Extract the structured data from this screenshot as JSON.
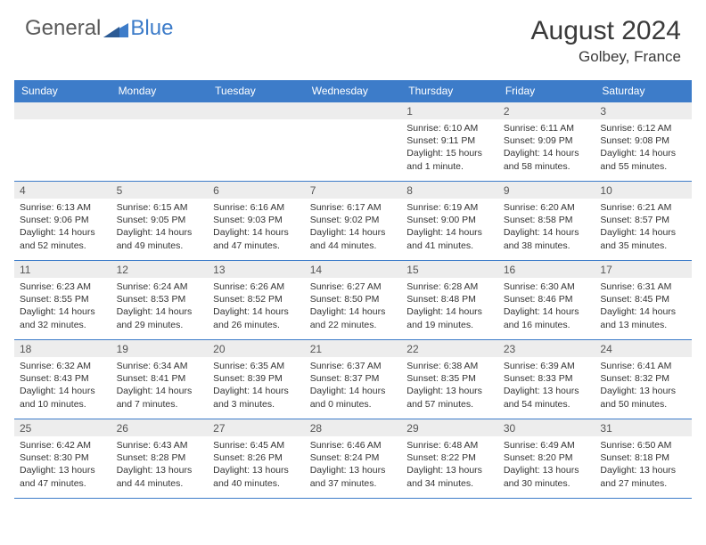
{
  "logo": {
    "general": "General",
    "blue": "Blue"
  },
  "title": "August 2024",
  "location": "Golbey, France",
  "colors": {
    "header_bg": "#3d7cc9",
    "header_text": "#ffffff",
    "daynum_bg": "#ededed",
    "text": "#333333",
    "border": "#3d7cc9"
  },
  "day_headers": [
    "Sunday",
    "Monday",
    "Tuesday",
    "Wednesday",
    "Thursday",
    "Friday",
    "Saturday"
  ],
  "weeks": [
    [
      {
        "n": "",
        "sr": "",
        "ss": "",
        "dl": ""
      },
      {
        "n": "",
        "sr": "",
        "ss": "",
        "dl": ""
      },
      {
        "n": "",
        "sr": "",
        "ss": "",
        "dl": ""
      },
      {
        "n": "",
        "sr": "",
        "ss": "",
        "dl": ""
      },
      {
        "n": "1",
        "sr": "Sunrise: 6:10 AM",
        "ss": "Sunset: 9:11 PM",
        "dl": "Daylight: 15 hours and 1 minute."
      },
      {
        "n": "2",
        "sr": "Sunrise: 6:11 AM",
        "ss": "Sunset: 9:09 PM",
        "dl": "Daylight: 14 hours and 58 minutes."
      },
      {
        "n": "3",
        "sr": "Sunrise: 6:12 AM",
        "ss": "Sunset: 9:08 PM",
        "dl": "Daylight: 14 hours and 55 minutes."
      }
    ],
    [
      {
        "n": "4",
        "sr": "Sunrise: 6:13 AM",
        "ss": "Sunset: 9:06 PM",
        "dl": "Daylight: 14 hours and 52 minutes."
      },
      {
        "n": "5",
        "sr": "Sunrise: 6:15 AM",
        "ss": "Sunset: 9:05 PM",
        "dl": "Daylight: 14 hours and 49 minutes."
      },
      {
        "n": "6",
        "sr": "Sunrise: 6:16 AM",
        "ss": "Sunset: 9:03 PM",
        "dl": "Daylight: 14 hours and 47 minutes."
      },
      {
        "n": "7",
        "sr": "Sunrise: 6:17 AM",
        "ss": "Sunset: 9:02 PM",
        "dl": "Daylight: 14 hours and 44 minutes."
      },
      {
        "n": "8",
        "sr": "Sunrise: 6:19 AM",
        "ss": "Sunset: 9:00 PM",
        "dl": "Daylight: 14 hours and 41 minutes."
      },
      {
        "n": "9",
        "sr": "Sunrise: 6:20 AM",
        "ss": "Sunset: 8:58 PM",
        "dl": "Daylight: 14 hours and 38 minutes."
      },
      {
        "n": "10",
        "sr": "Sunrise: 6:21 AM",
        "ss": "Sunset: 8:57 PM",
        "dl": "Daylight: 14 hours and 35 minutes."
      }
    ],
    [
      {
        "n": "11",
        "sr": "Sunrise: 6:23 AM",
        "ss": "Sunset: 8:55 PM",
        "dl": "Daylight: 14 hours and 32 minutes."
      },
      {
        "n": "12",
        "sr": "Sunrise: 6:24 AM",
        "ss": "Sunset: 8:53 PM",
        "dl": "Daylight: 14 hours and 29 minutes."
      },
      {
        "n": "13",
        "sr": "Sunrise: 6:26 AM",
        "ss": "Sunset: 8:52 PM",
        "dl": "Daylight: 14 hours and 26 minutes."
      },
      {
        "n": "14",
        "sr": "Sunrise: 6:27 AM",
        "ss": "Sunset: 8:50 PM",
        "dl": "Daylight: 14 hours and 22 minutes."
      },
      {
        "n": "15",
        "sr": "Sunrise: 6:28 AM",
        "ss": "Sunset: 8:48 PM",
        "dl": "Daylight: 14 hours and 19 minutes."
      },
      {
        "n": "16",
        "sr": "Sunrise: 6:30 AM",
        "ss": "Sunset: 8:46 PM",
        "dl": "Daylight: 14 hours and 16 minutes."
      },
      {
        "n": "17",
        "sr": "Sunrise: 6:31 AM",
        "ss": "Sunset: 8:45 PM",
        "dl": "Daylight: 14 hours and 13 minutes."
      }
    ],
    [
      {
        "n": "18",
        "sr": "Sunrise: 6:32 AM",
        "ss": "Sunset: 8:43 PM",
        "dl": "Daylight: 14 hours and 10 minutes."
      },
      {
        "n": "19",
        "sr": "Sunrise: 6:34 AM",
        "ss": "Sunset: 8:41 PM",
        "dl": "Daylight: 14 hours and 7 minutes."
      },
      {
        "n": "20",
        "sr": "Sunrise: 6:35 AM",
        "ss": "Sunset: 8:39 PM",
        "dl": "Daylight: 14 hours and 3 minutes."
      },
      {
        "n": "21",
        "sr": "Sunrise: 6:37 AM",
        "ss": "Sunset: 8:37 PM",
        "dl": "Daylight: 14 hours and 0 minutes."
      },
      {
        "n": "22",
        "sr": "Sunrise: 6:38 AM",
        "ss": "Sunset: 8:35 PM",
        "dl": "Daylight: 13 hours and 57 minutes."
      },
      {
        "n": "23",
        "sr": "Sunrise: 6:39 AM",
        "ss": "Sunset: 8:33 PM",
        "dl": "Daylight: 13 hours and 54 minutes."
      },
      {
        "n": "24",
        "sr": "Sunrise: 6:41 AM",
        "ss": "Sunset: 8:32 PM",
        "dl": "Daylight: 13 hours and 50 minutes."
      }
    ],
    [
      {
        "n": "25",
        "sr": "Sunrise: 6:42 AM",
        "ss": "Sunset: 8:30 PM",
        "dl": "Daylight: 13 hours and 47 minutes."
      },
      {
        "n": "26",
        "sr": "Sunrise: 6:43 AM",
        "ss": "Sunset: 8:28 PM",
        "dl": "Daylight: 13 hours and 44 minutes."
      },
      {
        "n": "27",
        "sr": "Sunrise: 6:45 AM",
        "ss": "Sunset: 8:26 PM",
        "dl": "Daylight: 13 hours and 40 minutes."
      },
      {
        "n": "28",
        "sr": "Sunrise: 6:46 AM",
        "ss": "Sunset: 8:24 PM",
        "dl": "Daylight: 13 hours and 37 minutes."
      },
      {
        "n": "29",
        "sr": "Sunrise: 6:48 AM",
        "ss": "Sunset: 8:22 PM",
        "dl": "Daylight: 13 hours and 34 minutes."
      },
      {
        "n": "30",
        "sr": "Sunrise: 6:49 AM",
        "ss": "Sunset: 8:20 PM",
        "dl": "Daylight: 13 hours and 30 minutes."
      },
      {
        "n": "31",
        "sr": "Sunrise: 6:50 AM",
        "ss": "Sunset: 8:18 PM",
        "dl": "Daylight: 13 hours and 27 minutes."
      }
    ]
  ]
}
